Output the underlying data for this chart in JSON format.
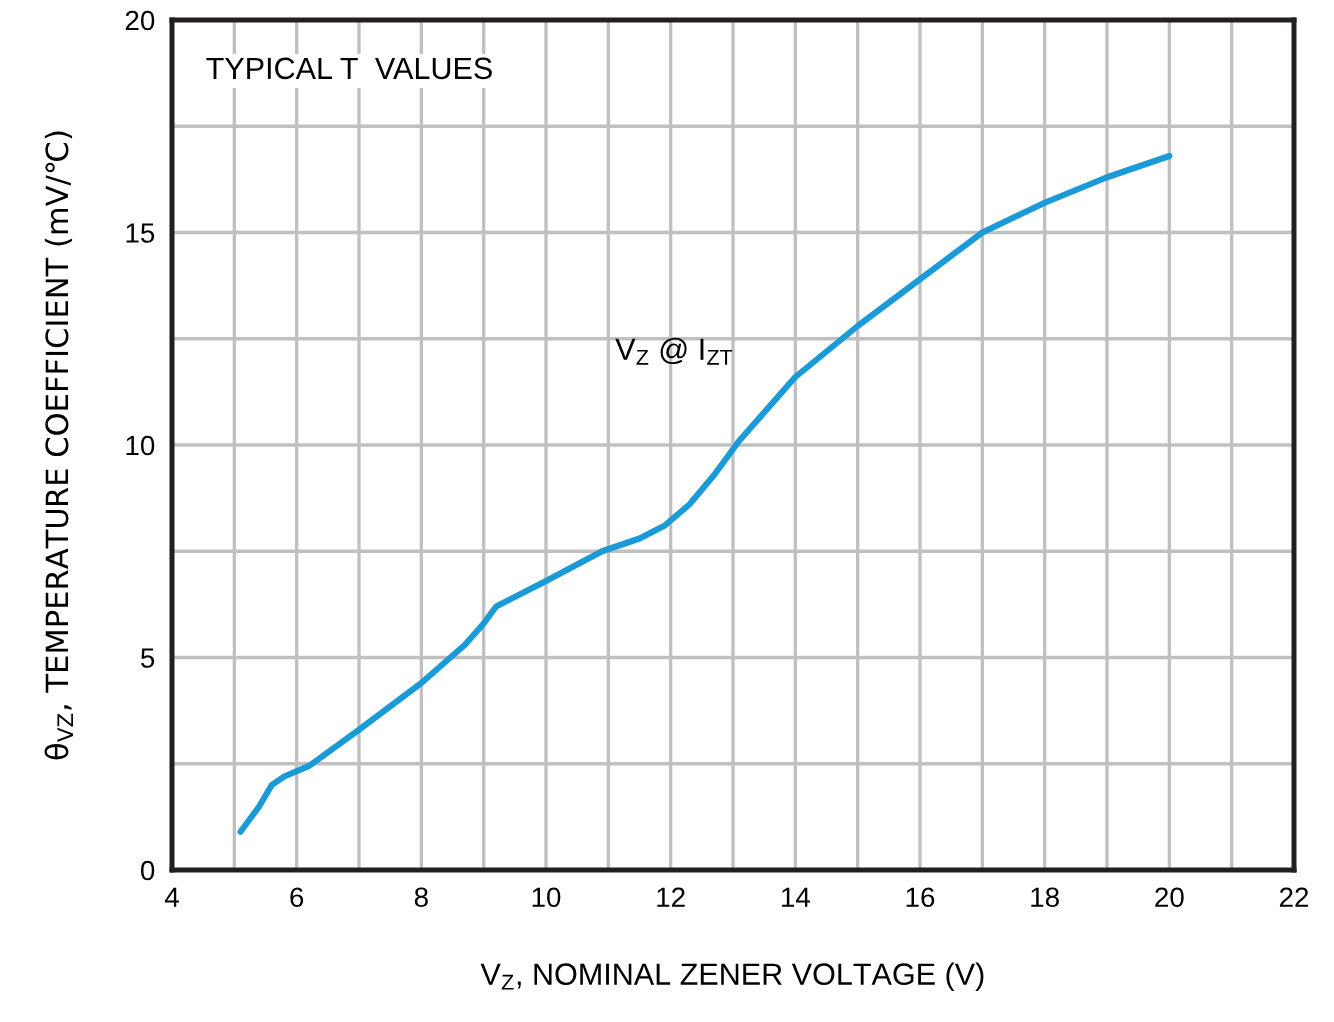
{
  "chart_data": {
    "type": "line",
    "xlabel": "V$_{Z}$, NOMINAL ZENER VOLTAGE (V)",
    "ylabel": "θ$_{VZ}$, TEMPERATURE COEFFICIENT (mV/℃)",
    "annotations": [
      "TYPICAL T  VALUES",
      "V$_{Z}$ @ I$_{ZT}$"
    ],
    "xlim": [
      4,
      22
    ],
    "ylim": [
      0,
      20
    ],
    "xticks": [
      4,
      {
        "value": 5,
        "label": null
      },
      6,
      {
        "value": 7,
        "label": null
      },
      8,
      {
        "value": 9,
        "label": null
      },
      10,
      {
        "value": 11,
        "label": null
      },
      12,
      {
        "value": 13,
        "label": null
      },
      14,
      {
        "value": 15,
        "label": null
      },
      16,
      {
        "value": 17,
        "label": null
      },
      18,
      {
        "value": 19,
        "label": null
      },
      20,
      {
        "value": 21,
        "label": null
      },
      22
    ],
    "yticks": [
      0,
      {
        "value": 2.5,
        "label": null
      },
      5,
      {
        "value": 7.5,
        "label": null
      },
      10,
      {
        "value": 12.5,
        "label": null
      },
      15,
      {
        "value": 17.5,
        "label": null
      },
      20
    ],
    "grid": true,
    "series": [
      {
        "color": "#1a9ad6",
        "x": [
          5.1,
          5.4,
          5.6,
          5.8,
          6.2,
          7,
          8,
          8.7,
          9,
          9.2,
          10,
          10.9,
          11.5,
          11.9,
          12.3,
          12.7,
          13.1,
          14,
          15,
          16,
          17,
          18,
          19,
          20
        ],
        "values": [
          0.9,
          1.5,
          2.0,
          2.2,
          2.45,
          3.3,
          4.4,
          5.3,
          5.8,
          6.2,
          6.8,
          7.5,
          7.8,
          8.1,
          8.6,
          9.3,
          10.1,
          11.6,
          12.8,
          13.9,
          15.0,
          15.7,
          16.3,
          16.8
        ]
      }
    ]
  }
}
